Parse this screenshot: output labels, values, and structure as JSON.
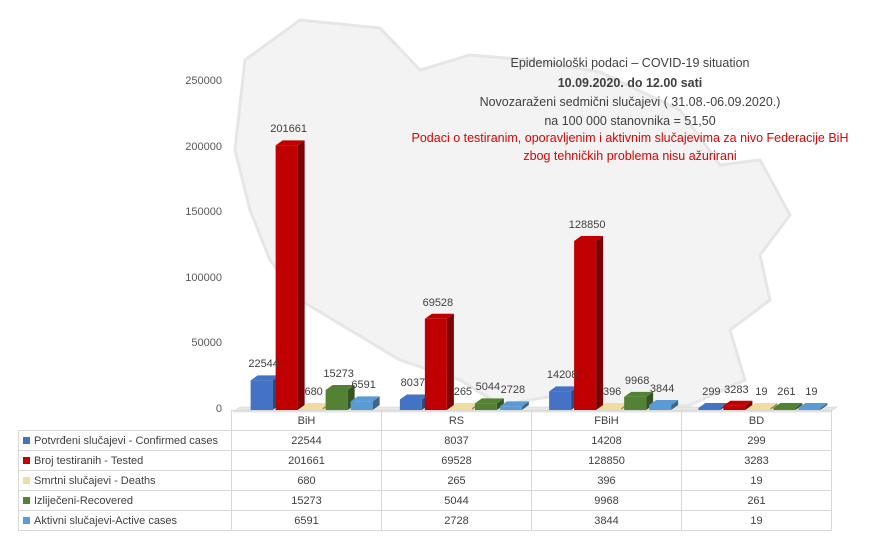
{
  "header": {
    "line1": "Epidemiološki podaci – COVID-19 situation",
    "line2": "10.09.2020. do 12.00 sati",
    "line3": "Novozaraženi sedmični slučajevi ( 31.08.-06.09.2020.)",
    "line4": "na 100 000 stanovnika = 51,50",
    "notice1": "Podaci o testiranim, oporavljenim i aktivnim slučajevima za nivo Federacije BiH",
    "notice2": "zbog tehničkih problema nisu ažurirani"
  },
  "chart_data": {
    "type": "bar",
    "title": "Epidemiološki podaci – COVID-19 situation",
    "categories": [
      "BiH",
      "RS",
      "FBiH",
      "BD"
    ],
    "ylim": [
      0,
      250000
    ],
    "yticks": [
      "0",
      "50000",
      "100000",
      "150000",
      "200000",
      "250000"
    ],
    "series": [
      {
        "name": "Potvrđeni slučajevi - Confirmed cases",
        "color": "#4472c4",
        "values": [
          22544,
          8037,
          14208,
          299
        ]
      },
      {
        "name": "Broj testiranih - Tested",
        "color": "#c00000",
        "values": [
          201661,
          69528,
          128850,
          3283
        ]
      },
      {
        "name": "Smrtni slučajevi - Deaths",
        "color": "#f2dc9b",
        "values": [
          680,
          265,
          396,
          19
        ]
      },
      {
        "name": "Izliječeni-Recovered",
        "color": "#548235",
        "values": [
          15273,
          5044,
          9968,
          261
        ]
      },
      {
        "name": "Aktivni slučajevi-Active cases",
        "color": "#5b9bd5",
        "values": [
          6591,
          2728,
          3844,
          19
        ]
      }
    ]
  }
}
